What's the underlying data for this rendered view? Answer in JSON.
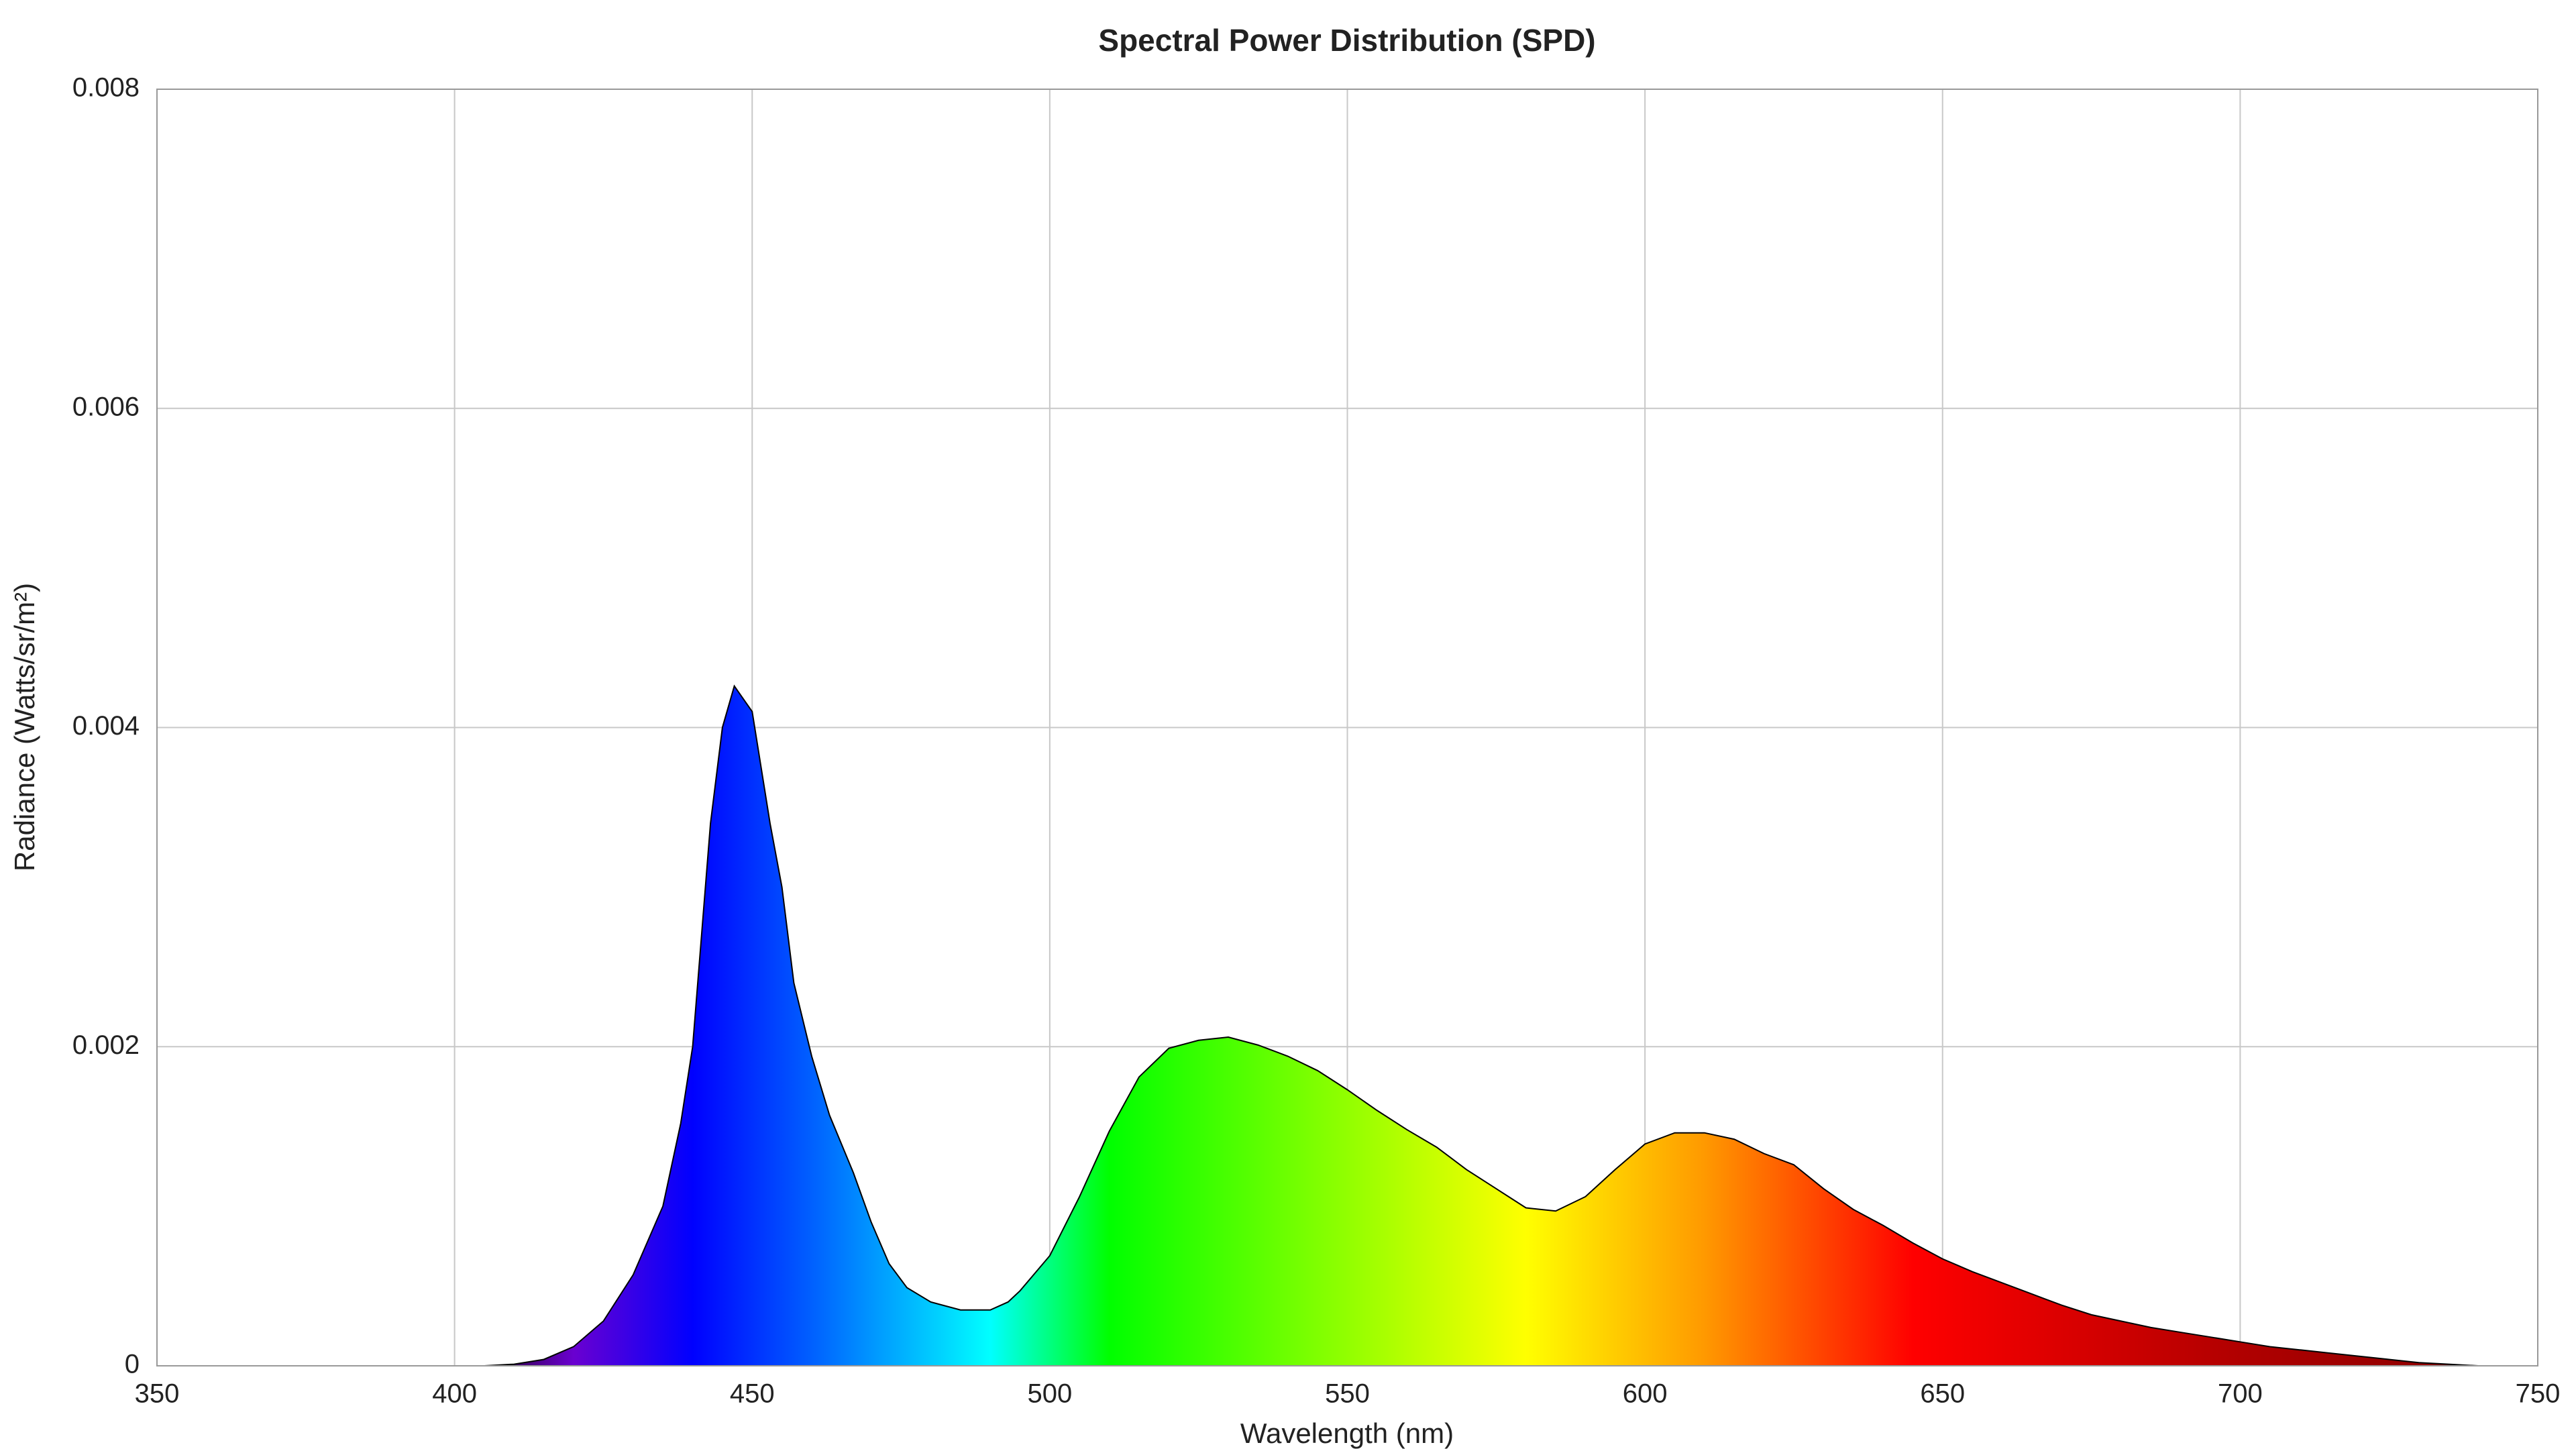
{
  "chart_data": {
    "type": "area",
    "title": "Spectral Power Distribution (SPD)",
    "x_label": "Wavelength (nm)",
    "y_label": "Radiance (Watts/sr/m²)",
    "x": [
      350,
      360,
      370,
      380,
      390,
      400,
      405,
      410,
      415,
      420,
      425,
      430,
      435,
      438,
      440,
      443,
      445,
      447,
      450,
      453,
      455,
      457,
      460,
      463,
      467,
      470,
      473,
      476,
      480,
      485,
      490,
      493,
      495,
      500,
      505,
      510,
      515,
      520,
      525,
      530,
      535,
      540,
      545,
      550,
      555,
      560,
      565,
      570,
      575,
      580,
      585,
      590,
      595,
      600,
      605,
      610,
      615,
      620,
      625,
      630,
      635,
      640,
      645,
      650,
      655,
      660,
      665,
      670,
      675,
      680,
      685,
      690,
      695,
      700,
      705,
      710,
      715,
      720,
      725,
      730,
      735,
      740,
      750
    ],
    "y": [
      0,
      0,
      0,
      0,
      0,
      0,
      0,
      1e-05,
      4e-05,
      0.00012,
      0.00028,
      0.00057,
      0.001,
      0.00152,
      0.002,
      0.0034,
      0.004,
      0.00426,
      0.0041,
      0.0034,
      0.003,
      0.0024,
      0.00194,
      0.00157,
      0.00121,
      0.0009,
      0.00064,
      0.00049,
      0.0004,
      0.00035,
      0.00035,
      0.0004,
      0.00047,
      0.00069,
      0.00106,
      0.00147,
      0.00181,
      0.00199,
      0.00204,
      0.00206,
      0.00201,
      0.00194,
      0.00185,
      0.00173,
      0.0016,
      0.00148,
      0.00137,
      0.00123,
      0.00111,
      0.00099,
      0.00097,
      0.00106,
      0.00123,
      0.00139,
      0.00146,
      0.00146,
      0.00142,
      0.00133,
      0.00126,
      0.00111,
      0.00098,
      0.00088,
      0.00077,
      0.00067,
      0.00059,
      0.00052,
      0.00045,
      0.00038,
      0.00032,
      0.00028,
      0.00024,
      0.00021,
      0.00018,
      0.00015,
      0.00012,
      0.0001,
      8e-05,
      6e-05,
      4e-05,
      2e-05,
      1e-05,
      0,
      0
    ],
    "line_color": "#000000",
    "spectrum_colors": [
      {
        "x": 410,
        "color": "#3a0060"
      },
      {
        "x": 420,
        "color": "#6a00d0"
      },
      {
        "x": 440,
        "color": "#0000ff"
      },
      {
        "x": 460,
        "color": "#0060ff"
      },
      {
        "x": 490,
        "color": "#00ffff"
      },
      {
        "x": 510,
        "color": "#00ff00"
      },
      {
        "x": 580,
        "color": "#ffff00"
      },
      {
        "x": 610,
        "color": "#ff9900"
      },
      {
        "x": 645,
        "color": "#ff0000"
      },
      {
        "x": 700,
        "color": "#b00000"
      },
      {
        "x": 750,
        "color": "#800000"
      }
    ],
    "xlim": [
      350,
      750
    ],
    "xticks": [
      350,
      400,
      450,
      500,
      550,
      600,
      650,
      700,
      750
    ],
    "ylim": [
      0,
      0.008
    ],
    "yticks": [
      0,
      0.002,
      0.004,
      0.006,
      0.008
    ],
    "grid": true,
    "grid_color": "#c8c8c8"
  }
}
